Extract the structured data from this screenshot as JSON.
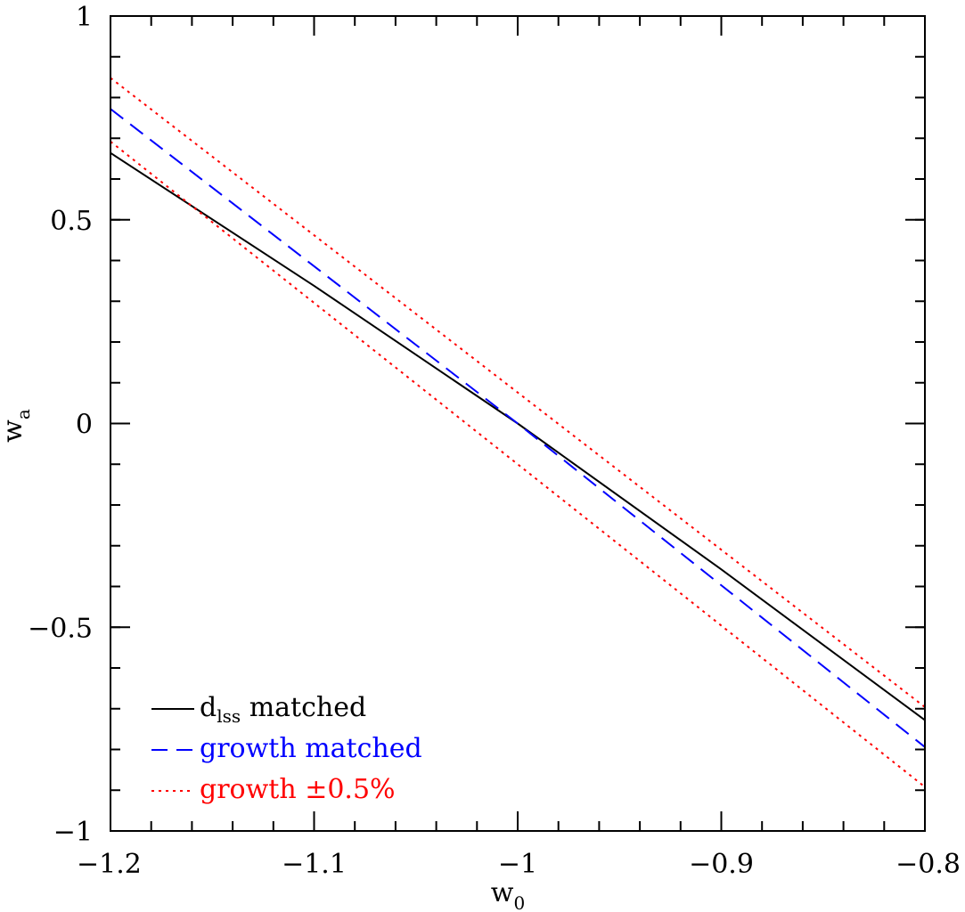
{
  "chart_data": {
    "type": "line",
    "xlabel": {
      "main": "w",
      "sub": "0"
    },
    "ylabel": {
      "main": "w",
      "sub": "a"
    },
    "xlim": [
      -1.2,
      -0.8
    ],
    "ylim": [
      -1,
      1
    ],
    "x_ticks": [
      -1.2,
      -1.1,
      -1,
      -0.9,
      -0.8
    ],
    "x_tick_labels": [
      "−1.2",
      "−1.1",
      "−1",
      "−0.9",
      "−0.8"
    ],
    "y_ticks": [
      -1,
      -0.5,
      0,
      0.5,
      1
    ],
    "y_tick_labels": [
      "−1",
      "−0.5",
      "0",
      "0.5",
      "1"
    ],
    "x_minor_step": 0.02,
    "y_minor_step": 0.1,
    "grid": false,
    "legend_position": "bottom-left",
    "colors": {
      "black": "#000000",
      "blue": "#0000ff",
      "red": "#ff0000"
    },
    "series": [
      {
        "legend": {
          "main": "d",
          "sub": "lss",
          "tail": " matched"
        },
        "style": "solid",
        "color": "#000000",
        "x": [
          -1.2,
          -1.1,
          -1.0,
          -0.9,
          -0.8
        ],
        "y": [
          0.664,
          0.338,
          0.0,
          -0.358,
          -0.728
        ]
      },
      {
        "legend": {
          "main": "growth matched"
        },
        "style": "dashed",
        "color": "#0000ff",
        "x": [
          -1.2,
          -1.0,
          -0.8
        ],
        "y": [
          0.772,
          0.0,
          -0.794
        ]
      },
      {
        "legend": {
          "main": "growth ±0.5%"
        },
        "style": "dotted",
        "color": "#ff0000",
        "x": [
          -1.2,
          -0.8
        ],
        "y": [
          0.848,
          -0.696
        ]
      },
      {
        "style": "dotted",
        "color": "#ff0000",
        "x": [
          -1.2,
          -0.8
        ],
        "y": [
          0.692,
          -0.892
        ]
      }
    ]
  }
}
